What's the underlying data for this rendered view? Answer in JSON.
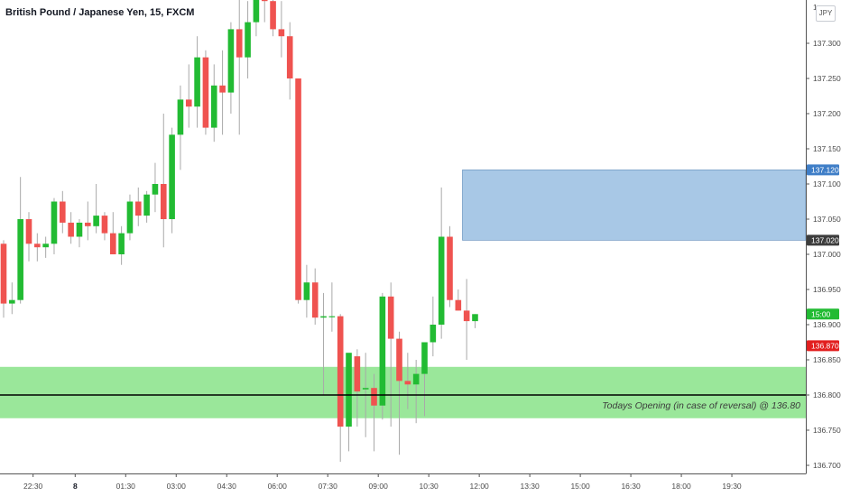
{
  "header": {
    "title": "British Pound / Japanese Yen, 15, FXCM",
    "currency": "JPY"
  },
  "colors": {
    "bull": "#22bb33",
    "bear": "#ef5350",
    "wick": "#a9a9a9",
    "supply_zone": "#a8c8e6",
    "supply_border": "#5a88b8",
    "demand_zone": "#9ae79a",
    "opening_line": "#000000",
    "tag_dark": "#3d3d3d",
    "tag_blue": "#3f7ec7",
    "tag_green": "#22bb33",
    "tag_red": "#e21f1f"
  },
  "chart_data": {
    "type": "candlestick",
    "ylim": [
      136.695,
      137.4
    ],
    "y_ticks": [
      "137.300",
      "137.250",
      "137.200",
      "137.150",
      "137.100",
      "137.050",
      "137.000",
      "136.950",
      "136.900",
      "136.850",
      "136.800",
      "136.750",
      "136.700"
    ],
    "x_ticks": [
      {
        "label": "22:30",
        "bar": 3.5,
        "bold": false
      },
      {
        "label": "8",
        "bar": 8.5,
        "bold": true
      },
      {
        "label": "01:30",
        "bar": 14.5,
        "bold": false
      },
      {
        "label": "03:00",
        "bar": 20.5,
        "bold": false
      },
      {
        "label": "04:30",
        "bar": 26.5,
        "bold": false
      },
      {
        "label": "06:00",
        "bar": 32.5,
        "bold": false
      },
      {
        "label": "07:30",
        "bar": 38.5,
        "bold": false
      },
      {
        "label": "09:00",
        "bar": 44.5,
        "bold": false
      },
      {
        "label": "10:30",
        "bar": 50.5,
        "bold": false
      },
      {
        "label": "12:00",
        "bar": 56.5,
        "bold": false
      },
      {
        "label": "13:30",
        "bar": 62.5,
        "bold": false
      },
      {
        "label": "15:00",
        "bar": 68.5,
        "bold": false
      },
      {
        "label": "16:30",
        "bar": 74.5,
        "bold": false
      },
      {
        "label": "18:00",
        "bar": 80.5,
        "bold": false
      },
      {
        "label": "19:30",
        "bar": 86.5,
        "bold": false
      }
    ],
    "candles": [
      {
        "o": 137.015,
        "h": 137.02,
        "l": 136.91,
        "c": 136.93
      },
      {
        "o": 136.93,
        "h": 136.96,
        "l": 136.915,
        "c": 136.935
      },
      {
        "o": 136.935,
        "h": 137.11,
        "l": 136.93,
        "c": 137.05
      },
      {
        "o": 137.05,
        "h": 137.06,
        "l": 136.99,
        "c": 137.015
      },
      {
        "o": 137.015,
        "h": 137.03,
        "l": 136.99,
        "c": 137.01
      },
      {
        "o": 137.01,
        "h": 137.025,
        "l": 136.995,
        "c": 137.015
      },
      {
        "o": 137.015,
        "h": 137.08,
        "l": 137.0,
        "c": 137.075
      },
      {
        "o": 137.075,
        "h": 137.09,
        "l": 137.03,
        "c": 137.045
      },
      {
        "o": 137.045,
        "h": 137.06,
        "l": 137.015,
        "c": 137.025
      },
      {
        "o": 137.025,
        "h": 137.05,
        "l": 137.01,
        "c": 137.045
      },
      {
        "o": 137.045,
        "h": 137.075,
        "l": 137.02,
        "c": 137.04
      },
      {
        "o": 137.04,
        "h": 137.1,
        "l": 137.03,
        "c": 137.055
      },
      {
        "o": 137.055,
        "h": 137.06,
        "l": 137.02,
        "c": 137.03
      },
      {
        "o": 137.03,
        "h": 137.06,
        "l": 137.0,
        "c": 137.0
      },
      {
        "o": 137.0,
        "h": 137.04,
        "l": 136.985,
        "c": 137.03
      },
      {
        "o": 137.03,
        "h": 137.085,
        "l": 137.02,
        "c": 137.075
      },
      {
        "o": 137.075,
        "h": 137.095,
        "l": 137.04,
        "c": 137.055
      },
      {
        "o": 137.055,
        "h": 137.09,
        "l": 137.045,
        "c": 137.085
      },
      {
        "o": 137.085,
        "h": 137.13,
        "l": 137.06,
        "c": 137.1
      },
      {
        "o": 137.1,
        "h": 137.2,
        "l": 137.01,
        "c": 137.05
      },
      {
        "o": 137.05,
        "h": 137.18,
        "l": 137.03,
        "c": 137.17
      },
      {
        "o": 137.17,
        "h": 137.24,
        "l": 137.12,
        "c": 137.22
      },
      {
        "o": 137.22,
        "h": 137.27,
        "l": 137.18,
        "c": 137.21
      },
      {
        "o": 137.21,
        "h": 137.31,
        "l": 137.18,
        "c": 137.28
      },
      {
        "o": 137.28,
        "h": 137.29,
        "l": 137.17,
        "c": 137.18
      },
      {
        "o": 137.18,
        "h": 137.27,
        "l": 137.16,
        "c": 137.24
      },
      {
        "o": 137.24,
        "h": 137.29,
        "l": 137.17,
        "c": 137.23
      },
      {
        "o": 137.23,
        "h": 137.33,
        "l": 137.2,
        "c": 137.32
      },
      {
        "o": 137.32,
        "h": 137.38,
        "l": 137.17,
        "c": 137.28
      },
      {
        "o": 137.28,
        "h": 137.36,
        "l": 137.25,
        "c": 137.33
      },
      {
        "o": 137.33,
        "h": 137.39,
        "l": 137.31,
        "c": 137.39
      },
      {
        "o": 137.39,
        "h": 137.395,
        "l": 137.33,
        "c": 137.36
      },
      {
        "o": 137.36,
        "h": 137.38,
        "l": 137.31,
        "c": 137.32
      },
      {
        "o": 137.32,
        "h": 137.36,
        "l": 137.28,
        "c": 137.31
      },
      {
        "o": 137.31,
        "h": 137.33,
        "l": 137.22,
        "c": 137.25
      },
      {
        "o": 137.25,
        "h": 137.25,
        "l": 136.93,
        "c": 136.935
      },
      {
        "o": 136.935,
        "h": 136.985,
        "l": 136.91,
        "c": 136.96
      },
      {
        "o": 136.96,
        "h": 136.98,
        "l": 136.9,
        "c": 136.91
      },
      {
        "o": 136.91,
        "h": 136.945,
        "l": 136.8,
        "c": 136.912
      },
      {
        "o": 136.912,
        "h": 136.96,
        "l": 136.89,
        "c": 136.912
      },
      {
        "o": 136.912,
        "h": 136.915,
        "l": 136.705,
        "c": 136.755
      },
      {
        "o": 136.755,
        "h": 136.855,
        "l": 136.72,
        "c": 136.86
      },
      {
        "o": 136.855,
        "h": 136.865,
        "l": 136.755,
        "c": 136.805
      },
      {
        "o": 136.808,
        "h": 136.86,
        "l": 136.74,
        "c": 136.81
      },
      {
        "o": 136.81,
        "h": 136.83,
        "l": 136.72,
        "c": 136.785
      },
      {
        "o": 136.785,
        "h": 136.945,
        "l": 136.765,
        "c": 136.94
      },
      {
        "o": 136.94,
        "h": 136.96,
        "l": 136.755,
        "c": 136.88
      },
      {
        "o": 136.88,
        "h": 136.89,
        "l": 136.715,
        "c": 136.82
      },
      {
        "o": 136.82,
        "h": 136.86,
        "l": 136.78,
        "c": 136.815
      },
      {
        "o": 136.815,
        "h": 136.85,
        "l": 136.76,
        "c": 136.83
      },
      {
        "o": 136.83,
        "h": 136.87,
        "l": 136.77,
        "c": 136.875
      },
      {
        "o": 136.875,
        "h": 136.94,
        "l": 136.855,
        "c": 136.9
      },
      {
        "o": 136.9,
        "h": 137.095,
        "l": 136.88,
        "c": 137.025
      },
      {
        "o": 137.025,
        "h": 137.04,
        "l": 136.925,
        "c": 136.935
      },
      {
        "o": 136.935,
        "h": 136.95,
        "l": 136.92,
        "c": 136.92
      },
      {
        "o": 136.92,
        "h": 136.965,
        "l": 136.85,
        "c": 136.905
      },
      {
        "o": 136.905,
        "h": 136.915,
        "l": 136.895,
        "c": 136.915
      }
    ],
    "supply_zone": {
      "top": 137.12,
      "bottom": 137.02,
      "from_bar": 54.5
    },
    "demand_zone": {
      "top": 136.84,
      "bottom": 136.767
    },
    "opening_line": {
      "value": 136.8,
      "label": "Todays Opening (in case of reversal) @ 136.80"
    },
    "price_tags": [
      {
        "value": 137.12,
        "text": "137.120",
        "color": "tag_blue"
      },
      {
        "value": 137.02,
        "text": "137.020",
        "color": "tag_dark"
      },
      {
        "value": 136.915,
        "text": "15:00",
        "color": "tag_green"
      },
      {
        "value": 136.87,
        "text": "136.870",
        "color": "tag_red"
      }
    ],
    "top_clip_label": "1"
  }
}
